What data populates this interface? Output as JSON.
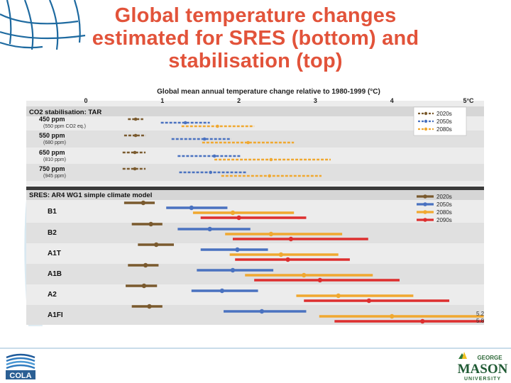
{
  "slide": {
    "title_lines": [
      "Global temperature changes",
      "estimated for SRES (bottom) and",
      "stabilisation (top)"
    ]
  },
  "logos": {
    "left": "COLA",
    "right_top": "GEORGE",
    "right_main": "MASON",
    "right_bottom": "UNIVERSITY"
  },
  "colors": {
    "title": "#e2533a",
    "s2020": "#7a5a2e",
    "s2050": "#4a72c0",
    "s2080": "#f0a830",
    "s2090": "#dd2f2f",
    "panel_bg": "#ececec",
    "band_alt": "#e0e0e0",
    "header_bg": "#3a3a3a"
  },
  "chart_data": {
    "type": "error-bar range",
    "title": "Global mean annual temperature change relative to 1980-1999 (°C)",
    "x_ticks": [
      "0",
      "1",
      "2",
      "3",
      "4",
      "5°C"
    ],
    "xlim": [
      0,
      5
    ],
    "top_panel": {
      "title": "CO2 stabilisation: TAR",
      "legend": [
        "2020s",
        "2050s",
        "2080s"
      ],
      "rows": [
        {
          "label": "450 ppm",
          "sublabel": "(550 ppm CO2 eq.)",
          "r2020": [
            0.55,
            0.75,
            0.65
          ],
          "r2050": [
            0.98,
            1.62,
            1.3
          ],
          "r2080": [
            1.25,
            2.2,
            1.72
          ]
        },
        {
          "label": "550 ppm",
          "sublabel": "(680 ppm)",
          "r2020": [
            0.5,
            0.78,
            0.65
          ],
          "r2050": [
            1.12,
            1.9,
            1.55
          ],
          "r2080": [
            1.52,
            2.72,
            2.12
          ]
        },
        {
          "label": "650 ppm",
          "sublabel": "(810 ppm)",
          "r2020": [
            0.48,
            0.78,
            0.64
          ],
          "r2050": [
            1.2,
            2.02,
            1.68
          ],
          "r2080": [
            1.68,
            3.2,
            2.42
          ]
        },
        {
          "label": "750 ppm",
          "sublabel": "(945 ppm)",
          "r2020": [
            0.48,
            0.78,
            0.64
          ],
          "r2050": [
            1.22,
            2.1,
            1.63
          ],
          "r2080": [
            1.77,
            3.08,
            2.4
          ]
        }
      ]
    },
    "bottom_panel": {
      "title": "SRES: AR4 WG1 simple climate model",
      "legend": [
        "2020s",
        "2050s",
        "2080s",
        "2090s"
      ],
      "rows": [
        {
          "label": "B1",
          "r2020": [
            0.5,
            0.9,
            0.75
          ],
          "r2050": [
            1.05,
            1.85,
            1.38
          ],
          "r2080": [
            1.4,
            2.72,
            1.92
          ],
          "r2090": [
            1.5,
            2.88,
            2.0
          ]
        },
        {
          "label": "B2",
          "r2020": [
            0.6,
            1.0,
            0.85
          ],
          "r2050": [
            1.2,
            2.15,
            1.62
          ],
          "r2080": [
            1.82,
            3.35,
            2.42
          ],
          "r2090": [
            1.92,
            3.69,
            2.68
          ]
        },
        {
          "label": "A1T",
          "r2020": [
            0.68,
            1.15,
            0.92
          ],
          "r2050": [
            1.5,
            2.38,
            1.98
          ],
          "r2080": [
            1.88,
            3.3,
            2.55
          ],
          "r2090": [
            1.95,
            3.45,
            2.64
          ]
        },
        {
          "label": "A1B",
          "r2020": [
            0.55,
            0.95,
            0.78
          ],
          "r2050": [
            1.45,
            2.45,
            1.92
          ],
          "r2080": [
            2.08,
            3.75,
            2.85
          ],
          "r2090": [
            2.2,
            4.1,
            3.06
          ]
        },
        {
          "label": "A2",
          "r2020": [
            0.52,
            0.93,
            0.76
          ],
          "r2050": [
            1.38,
            2.25,
            1.78
          ],
          "r2080": [
            2.75,
            4.28,
            3.3
          ],
          "r2090": [
            2.85,
            4.75,
            3.7
          ]
        },
        {
          "label": "A1FI",
          "r2020": [
            0.6,
            1.0,
            0.83
          ],
          "r2050": [
            1.8,
            2.88,
            2.3
          ],
          "r2080": [
            3.05,
            5.2,
            4.0
          ],
          "r2090": [
            3.25,
            5.8,
            4.4
          ]
        }
      ],
      "annotations": [
        "5.2",
        "5.8"
      ]
    }
  }
}
